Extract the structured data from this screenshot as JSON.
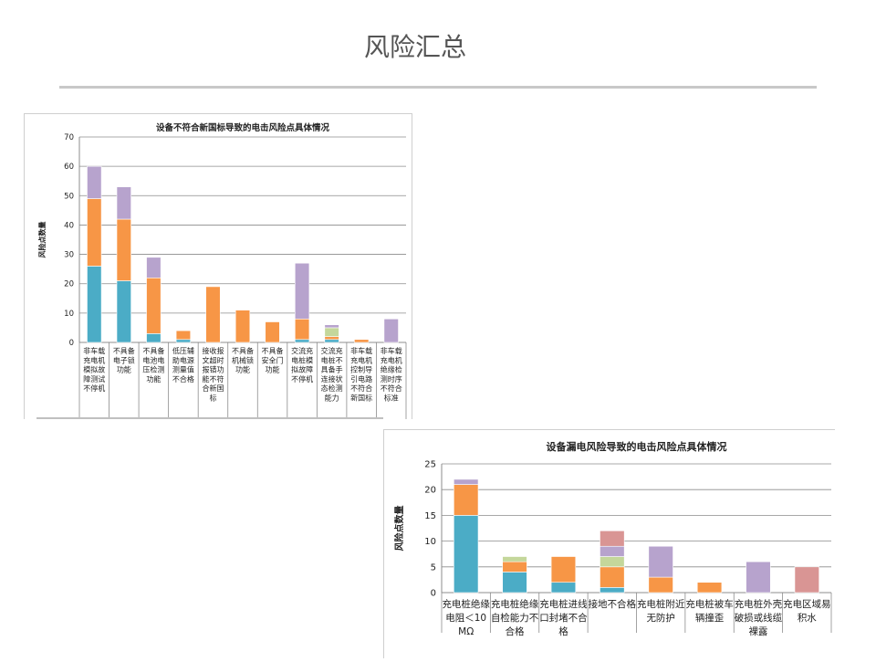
{
  "slide": {
    "title": "风险汇总"
  },
  "colors": {
    "teal": "#4bacc6",
    "orange": "#f79646",
    "purple": "#b7a3cd",
    "green": "#c4d79b",
    "pink": "#d99594"
  },
  "chart_data": [
    {
      "type": "bar",
      "stacked": true,
      "title": "设备不符合新国标导致的电击风险点具体情况",
      "ylabel": "风险点数量",
      "xlabel": "",
      "ylim": [
        0,
        70
      ],
      "yticks": [
        0,
        10,
        20,
        30,
        40,
        50,
        60,
        70
      ],
      "grid": true,
      "categories": [
        "非车载充电机模拟故障测试不停机",
        "不具备电子锁功能",
        "不具备电池电压检测功能",
        "低压辅助电源测量值不合格",
        "接收报文超时报错功能不符合新国标",
        "不具备机械锁功能",
        "不具备安全门功能",
        "交流充电桩模拟故障不停机",
        "交流充电桩不具备手连接状态检测能力",
        "非车载充电机控制导引电路不符合新国标",
        "非车载充电机绝缘检测时序不符合标准"
      ],
      "series": [
        {
          "color": "#4bacc6",
          "values": [
            26,
            21,
            3,
            1,
            0,
            0,
            0,
            1,
            1,
            0,
            0
          ]
        },
        {
          "color": "#f79646",
          "values": [
            23,
            21,
            19,
            3,
            19,
            11,
            7,
            7,
            1,
            1,
            0
          ]
        },
        {
          "color": "#c4d79b",
          "values": [
            0,
            0,
            0,
            0,
            0,
            0,
            0,
            0,
            3,
            0,
            0
          ]
        },
        {
          "color": "#b7a3cd",
          "values": [
            11,
            11,
            7,
            0,
            0,
            0,
            0,
            19,
            1,
            0,
            8
          ]
        }
      ]
    },
    {
      "type": "bar",
      "stacked": true,
      "title": "设备漏电风险导致的电击风险点具体情况",
      "ylabel": "风险点数量",
      "xlabel": "",
      "ylim": [
        0,
        25
      ],
      "yticks": [
        0,
        5,
        10,
        15,
        20,
        25
      ],
      "grid": true,
      "categories": [
        "充电桩绝缘电阻＜10MΩ",
        "充电桩绝缘自检能力不合格",
        "充电桩进线口封堵不合格",
        "接地不合格",
        "充电桩附近无防护",
        "充电桩被车辆撞歪",
        "充电桩外壳破损或线缆裸露",
        "充电区域易积水"
      ],
      "series": [
        {
          "color": "#4bacc6",
          "values": [
            15,
            4,
            2,
            1,
            0,
            0,
            0,
            0
          ]
        },
        {
          "color": "#f79646",
          "values": [
            6,
            2,
            5,
            4,
            3,
            2,
            0,
            0
          ]
        },
        {
          "color": "#c4d79b",
          "values": [
            0,
            1,
            0,
            2,
            0,
            0,
            0,
            0
          ]
        },
        {
          "color": "#b7a3cd",
          "values": [
            1,
            0,
            0,
            2,
            6,
            0,
            6,
            0
          ]
        },
        {
          "color": "#d99594",
          "values": [
            0,
            0,
            0,
            3,
            0,
            0,
            0,
            5
          ]
        }
      ]
    }
  ]
}
